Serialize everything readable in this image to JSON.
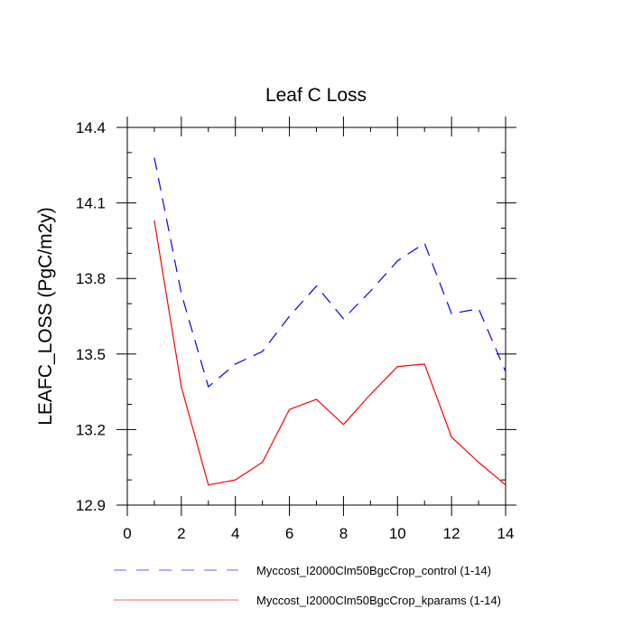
{
  "chart_data": {
    "type": "line",
    "title": "Leaf C Loss",
    "xlabel": "",
    "ylabel": "LEAFC_LOSS  (PgC/m2y)",
    "xlim": [
      0,
      14
    ],
    "ylim": [
      12.9,
      14.4
    ],
    "xticks": [
      0,
      2,
      4,
      6,
      8,
      10,
      12,
      14
    ],
    "xtick_labels": [
      "0",
      "2",
      "4",
      "6",
      "8",
      "10",
      "12",
      "14"
    ],
    "yticks": [
      12.9,
      13.2,
      13.5,
      13.8,
      14.1,
      14.4
    ],
    "ytick_labels": [
      "12.9",
      "13.2",
      "13.5",
      "13.8",
      "14.1",
      "14.4"
    ],
    "grid": false,
    "legend_position": "bottom",
    "x": [
      1,
      2,
      3,
      4,
      5,
      6,
      7,
      8,
      9,
      10,
      11,
      12,
      13,
      14
    ],
    "series": [
      {
        "name": "Myccost_I2000Clm50BgcCrop_control (1-14)",
        "color": "#0000ff",
        "dash": "dashed",
        "values": [
          14.28,
          13.74,
          13.37,
          13.46,
          13.51,
          13.65,
          13.77,
          13.64,
          13.75,
          13.87,
          13.94,
          13.66,
          13.68,
          13.43
        ]
      },
      {
        "name": "Myccost_I2000Clm50BgcCrop_kparams (1-14)",
        "color": "#ff0000",
        "dash": "solid",
        "values": [
          14.03,
          13.37,
          12.98,
          13.0,
          13.07,
          13.28,
          13.32,
          13.22,
          13.34,
          13.45,
          13.46,
          13.17,
          13.07,
          12.98
        ]
      }
    ]
  }
}
